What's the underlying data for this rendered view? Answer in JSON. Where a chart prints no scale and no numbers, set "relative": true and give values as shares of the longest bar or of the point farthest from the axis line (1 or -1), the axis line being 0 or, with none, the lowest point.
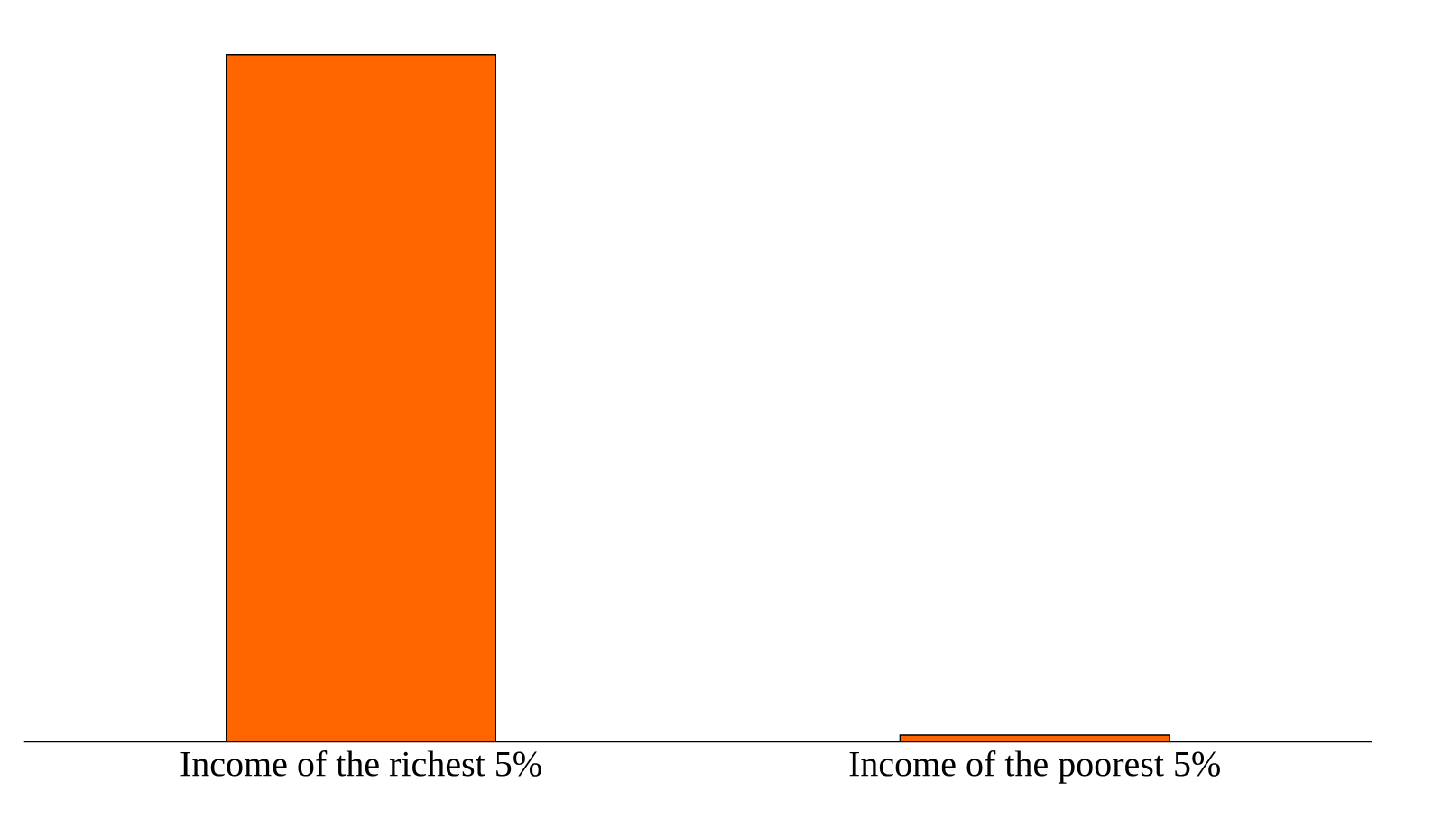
{
  "chart_data": {
    "type": "bar",
    "relative": true,
    "categories": [
      "Income of the richest 5%",
      "Income of the poorest 5%"
    ],
    "values": [
      1,
      0.01
    ],
    "color": "#ff6600"
  }
}
